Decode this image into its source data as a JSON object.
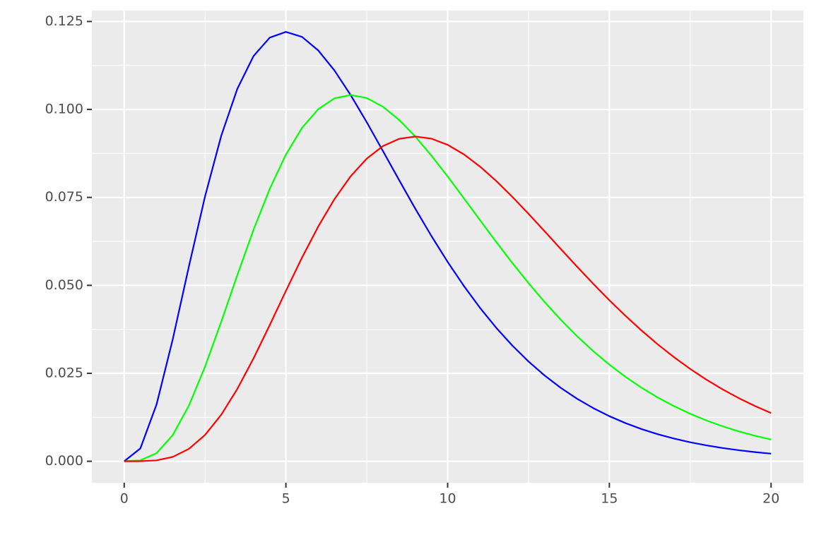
{
  "chart_data": {
    "type": "line",
    "x": [
      0,
      0.5,
      1,
      1.5,
      2,
      2.5,
      3,
      3.5,
      4,
      4.5,
      5,
      5.5,
      6,
      6.5,
      7,
      7.5,
      8,
      8.5,
      9,
      9.5,
      10,
      10.5,
      11,
      11.5,
      12,
      12.5,
      13,
      13.5,
      14,
      14.5,
      15,
      15.5,
      16,
      16.5,
      17,
      17.5,
      18,
      18.5,
      19,
      19.5,
      20
    ],
    "series": [
      {
        "color": "#0000ff",
        "values": [
          0,
          0.003662,
          0.016131,
          0.034621,
          0.055348,
          0.075301,
          0.092509,
          0.105918,
          0.115182,
          0.120418,
          0.122043,
          0.120621,
          0.116766,
          0.111083,
          0.10412,
          0.096356,
          0.088181,
          0.079912,
          0.071797,
          0.064008,
          0.05667,
          0.049859,
          0.04362,
          0.037965,
          0.032887,
          0.028364,
          0.024364,
          0.020853,
          0.017786,
          0.015122,
          0.012819,
          0.010836,
          0.009136,
          0.007684,
          0.006448,
          0.005399,
          0.004512,
          0.003763,
          0.003133,
          0.002603,
          0.00216
        ]
      },
      {
        "color": "#00ff00",
        "values": [
          0,
          0.0002616,
          0.0023044,
          0.0074188,
          0.015814,
          0.026893,
          0.039647,
          0.052959,
          0.065818,
          0.077412,
          0.087174,
          0.094774,
          0.100085,
          0.103149,
          0.10412,
          0.103239,
          0.100778,
          0.097036,
          0.09231,
          0.086868,
          0.080957,
          0.074789,
          0.068546,
          0.062371,
          0.056378,
          0.05065,
          0.045247,
          0.040216,
          0.035572,
          0.031324,
          0.027469,
          0.023994,
          0.020882,
          0.018112,
          0.015659,
          0.013498,
          0.011602,
          0.009945,
          0.008504,
          0.007251,
          0.006171
        ]
      },
      {
        "color": "#ff0000",
        "values": [
          0,
          1.453e-05,
          0.00025604,
          0.0012365,
          0.0035142,
          0.0074703,
          0.013216,
          0.020595,
          0.029252,
          0.038706,
          0.04843,
          0.057918,
          0.066723,
          0.074497,
          0.080982,
          0.086033,
          0.08958,
          0.091645,
          0.09231,
          0.091694,
          0.089952,
          0.087254,
          0.083778,
          0.079696,
          0.075171,
          0.070347,
          0.065357,
          0.060324,
          0.055334,
          0.050466,
          0.045782,
          0.041323,
          0.037124,
          0.033205,
          0.029578,
          0.026246,
          0.023204,
          0.020443,
          0.017953,
          0.015711,
          0.013714
        ]
      }
    ],
    "xlim": [
      -1,
      21
    ],
    "xticks": [
      0,
      5,
      10,
      15,
      20
    ],
    "ylim": [
      -0.0061,
      0.1281
    ],
    "yticks": [
      {
        "value": 0,
        "label": "0.000"
      },
      {
        "value": 0.025,
        "label": "0.025"
      },
      {
        "value": 0.05,
        "label": "0.050"
      },
      {
        "value": 0.075,
        "label": "0.075"
      },
      {
        "value": 0.1,
        "label": "0.100"
      },
      {
        "value": 0.125,
        "label": "0.125"
      }
    ],
    "grid": true
  }
}
